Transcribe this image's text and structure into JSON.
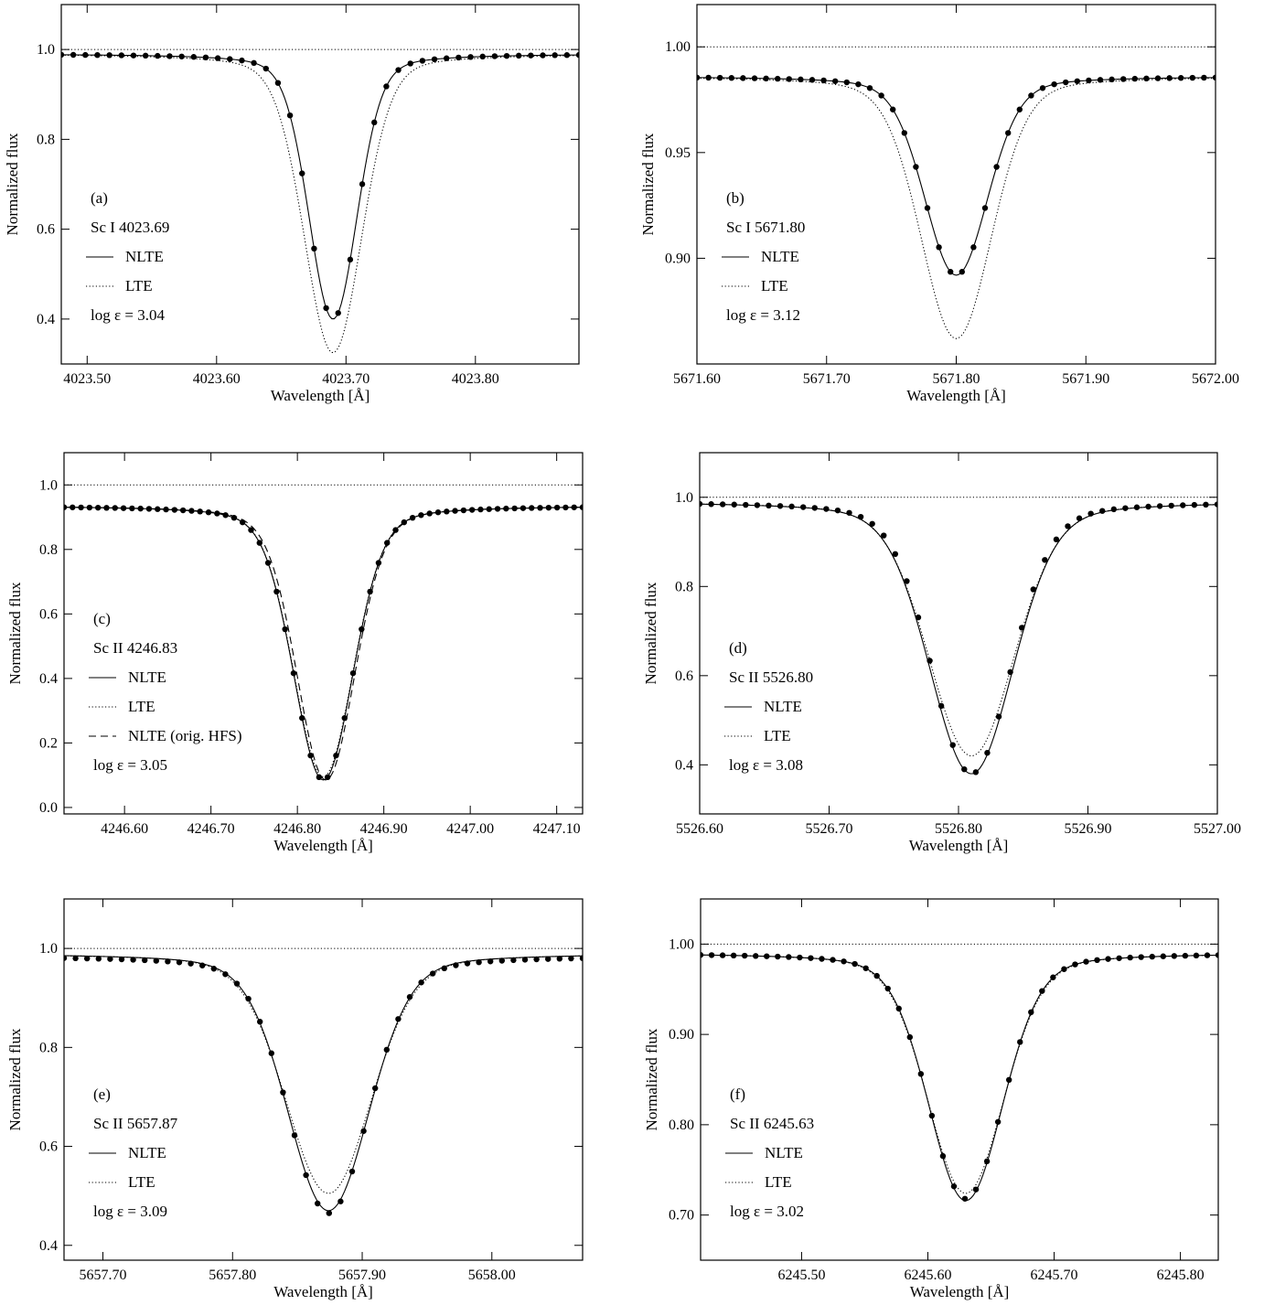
{
  "chart_data": [
    {
      "type": "line",
      "panel_label": "(a)",
      "line": "Sc I 4023.69",
      "abundance": "log ε = 3.04",
      "xlabel": "Wavelength [Å]",
      "ylabel": "Normalized flux",
      "xlim": [
        4023.48,
        4023.88
      ],
      "ylim": [
        0.3,
        1.1
      ],
      "xticks": [
        4023.5,
        4023.6,
        4023.7,
        4023.8
      ],
      "xtick_labels": [
        "4023.50",
        "4023.60",
        "4023.70",
        "4023.80"
      ],
      "yticks": [
        0.4,
        0.6,
        0.8,
        1.0
      ],
      "ytick_labels": [
        "0.4",
        "0.6",
        "0.8",
        "1.0"
      ],
      "legend": [
        {
          "name": "NLTE",
          "style": "solid"
        },
        {
          "name": "LTE",
          "style": "dotted"
        }
      ],
      "profile": {
        "NLTE": {
          "center": 4023.69,
          "depth": 0.59,
          "width": 0.026,
          "cont": 0.99,
          "wing_drop": 0.01
        },
        "LTE": {
          "center": 4023.69,
          "depth": 0.665,
          "width": 0.031,
          "cont": 0.99,
          "wing_drop": 0.01
        },
        "observed": {
          "center": 4023.69,
          "depth": 0.59,
          "width": 0.026,
          "cont": 0.99,
          "wing_drop": 0.01
        }
      },
      "observed_x_range": [
        4023.48,
        4023.88
      ],
      "observed_count": 44
    },
    {
      "type": "line",
      "panel_label": "(b)",
      "line": "Sc I 5671.80",
      "abundance": "log ε = 3.12",
      "xlabel": "Wavelength [Å]",
      "ylabel": "Normalized flux",
      "xlim": [
        5671.6,
        5672.0
      ],
      "ylim": [
        0.85,
        1.02
      ],
      "xticks": [
        5671.6,
        5671.7,
        5671.8,
        5671.9,
        5672.0
      ],
      "xtick_labels": [
        "5671.60",
        "5671.70",
        "5671.80",
        "5671.90",
        "5672.00"
      ],
      "yticks": [
        0.9,
        0.95,
        1.0
      ],
      "ytick_labels": [
        "0.90",
        "0.95",
        "1.00"
      ],
      "legend": [
        {
          "name": "NLTE",
          "style": "solid"
        },
        {
          "name": "LTE",
          "style": "dotted"
        }
      ],
      "profile": {
        "NLTE": {
          "center": 5671.8,
          "depth": 0.094,
          "width": 0.034,
          "cont": 0.986,
          "wing_drop": 0.0
        },
        "LTE": {
          "center": 5671.8,
          "depth": 0.124,
          "width": 0.038,
          "cont": 0.986,
          "wing_drop": 0.0
        },
        "observed": {
          "center": 5671.8,
          "depth": 0.094,
          "width": 0.034,
          "cont": 0.986,
          "wing_drop": 0.0
        }
      },
      "observed_x_range": [
        5671.6,
        5672.0
      ],
      "observed_count": 46
    },
    {
      "type": "line",
      "panel_label": "(c)",
      "line": "Sc II 4246.83",
      "abundance": "log ε = 3.05",
      "xlabel": "Wavelength [Å]",
      "ylabel": "Normalized flux",
      "xlim": [
        4246.53,
        4247.13
      ],
      "ylim": [
        -0.02,
        1.1
      ],
      "xticks": [
        4246.6,
        4246.7,
        4246.8,
        4246.9,
        4247.0,
        4247.1
      ],
      "xtick_labels": [
        "4246.60",
        "4246.70",
        "4246.80",
        "4246.90",
        "4247.00",
        "4247.10"
      ],
      "yticks": [
        0.0,
        0.2,
        0.4,
        0.6,
        0.8,
        1.0
      ],
      "ytick_labels": [
        "0.0",
        "0.2",
        "0.4",
        "0.6",
        "0.8",
        "1.0"
      ],
      "legend": [
        {
          "name": "NLTE",
          "style": "solid"
        },
        {
          "name": "LTE",
          "style": "dotted"
        },
        {
          "name": "NLTE (orig. HFS)",
          "style": "dashed"
        }
      ],
      "profile": {
        "NLTE": {
          "center": 4246.83,
          "depth": 0.85,
          "width": 0.048,
          "cont": 0.935,
          "wing_drop": 0.0
        },
        "LTE": {
          "center": 4246.83,
          "depth": 0.84,
          "width": 0.048,
          "cont": 0.935,
          "wing_drop": 0.0
        },
        "NLTE (orig. HFS)": {
          "center": 4246.833,
          "depth": 0.85,
          "width": 0.047,
          "cont": 0.935,
          "wing_drop": 0.0
        },
        "observed": {
          "center": 4246.83,
          "depth": 0.85,
          "width": 0.048,
          "cont": 0.935,
          "wing_drop": 0.0
        }
      },
      "observed_x_range": [
        4246.53,
        4247.13
      ],
      "observed_count": 62
    },
    {
      "type": "line",
      "panel_label": "(d)",
      "line": "Sc II 5526.80",
      "abundance": "log ε = 3.08",
      "xlabel": "Wavelength [Å]",
      "ylabel": "Normalized flux",
      "xlim": [
        5526.6,
        5527.0
      ],
      "ylim": [
        0.29,
        1.1
      ],
      "xticks": [
        5526.6,
        5526.7,
        5526.8,
        5526.9,
        5527.0
      ],
      "xtick_labels": [
        "5526.60",
        "5526.70",
        "5526.80",
        "5526.90",
        "5527.00"
      ],
      "yticks": [
        0.4,
        0.6,
        0.8,
        1.0
      ],
      "ytick_labels": [
        "0.4",
        "0.6",
        "0.8",
        "1.0"
      ],
      "legend": [
        {
          "name": "NLTE",
          "style": "solid"
        },
        {
          "name": "LTE",
          "style": "dotted"
        }
      ],
      "profile": {
        "NLTE": {
          "center": 5526.81,
          "depth": 0.61,
          "width": 0.045,
          "cont": 0.99,
          "wing_drop": 0.0
        },
        "LTE": {
          "center": 5526.81,
          "depth": 0.57,
          "width": 0.046,
          "cont": 0.99,
          "wing_drop": 0.0
        },
        "observed": {
          "center": 5526.81,
          "depth": 0.61,
          "width": 0.043,
          "cont": 0.99,
          "wing_drop": 0.0
        }
      },
      "observed_x_range": [
        5526.6,
        5527.0
      ],
      "observed_count": 46
    },
    {
      "type": "line",
      "panel_label": "(e)",
      "line": "Sc II 5657.87",
      "abundance": "log ε = 3.09",
      "xlabel": "Wavelength [Å]",
      "ylabel": "Normalized flux",
      "xlim": [
        5657.67,
        5658.07
      ],
      "ylim": [
        0.37,
        1.1
      ],
      "xticks": [
        5657.7,
        5657.8,
        5657.9,
        5658.0
      ],
      "xtick_labels": [
        "5657.70",
        "5657.80",
        "5657.90",
        "5658.00"
      ],
      "yticks": [
        0.4,
        0.6,
        0.8,
        1.0
      ],
      "ytick_labels": [
        "0.4",
        "0.6",
        "0.8",
        "1.0"
      ],
      "legend": [
        {
          "name": "NLTE",
          "style": "solid"
        },
        {
          "name": "LTE",
          "style": "dotted"
        }
      ],
      "profile": {
        "NLTE": {
          "center": 5657.874,
          "depth": 0.52,
          "width": 0.044,
          "cont": 0.99,
          "wing_drop": 0.0
        },
        "LTE": {
          "center": 5657.874,
          "depth": 0.485,
          "width": 0.046,
          "cont": 0.99,
          "wing_drop": 0.0
        },
        "observed": {
          "center": 5657.874,
          "depth": 0.52,
          "width": 0.043,
          "cont": 0.985,
          "wing_drop": 0.0
        }
      },
      "observed_x_range": [
        5657.67,
        5658.07
      ],
      "observed_count": 46
    },
    {
      "type": "line",
      "panel_label": "(f)",
      "line": "Sc II 6245.63",
      "abundance": "log ε = 3.02",
      "xlabel": "Wavelength [Å]",
      "ylabel": "Normalized flux",
      "xlim": [
        6245.42,
        6245.83
      ],
      "ylim": [
        0.65,
        1.05
      ],
      "xticks": [
        6245.5,
        6245.6,
        6245.7,
        6245.8
      ],
      "xtick_labels": [
        "6245.50",
        "6245.60",
        "6245.70",
        "6245.80"
      ],
      "yticks": [
        0.7,
        0.8,
        0.9,
        1.0
      ],
      "ytick_labels": [
        "0.70",
        "0.80",
        "0.90",
        "1.00"
      ],
      "legend": [
        {
          "name": "NLTE",
          "style": "solid"
        },
        {
          "name": "LTE",
          "style": "dotted"
        }
      ],
      "profile": {
        "NLTE": {
          "center": 6245.63,
          "depth": 0.274,
          "width": 0.041,
          "cont": 0.99,
          "wing_drop": 0.0
        },
        "LTE": {
          "center": 6245.63,
          "depth": 0.266,
          "width": 0.042,
          "cont": 0.99,
          "wing_drop": 0.0
        },
        "observed": {
          "center": 6245.63,
          "depth": 0.272,
          "width": 0.041,
          "cont": 0.99,
          "wing_drop": 0.0
        }
      },
      "observed_x_range": [
        6245.42,
        6245.83
      ],
      "observed_count": 48
    }
  ]
}
